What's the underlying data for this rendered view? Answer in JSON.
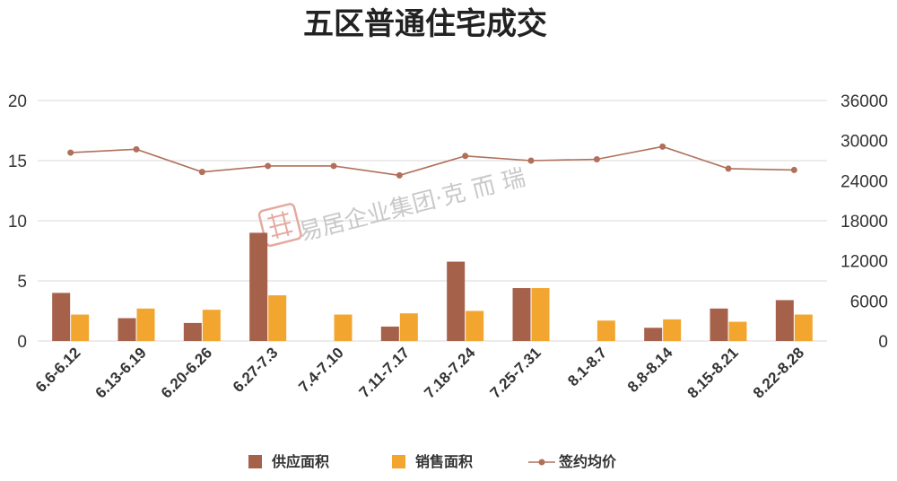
{
  "chart_data": {
    "type": "bar",
    "title": "五区普通住宅成交",
    "categories": [
      "6.6-6.12",
      "6.13-6.19",
      "6.20-6.26",
      "6.27-7.3",
      "7.4-7.10",
      "7.11-7.17",
      "7.18-7.24",
      "7.25-7.31",
      "8.1-8.7",
      "8.8-8.14",
      "8.15-8.21",
      "8.22-8.28"
    ],
    "series": [
      {
        "name": "供应面积",
        "kind": "bar",
        "axis": "left",
        "color": "#a5614a",
        "values": [
          4.0,
          1.9,
          1.5,
          9.0,
          0,
          1.2,
          6.6,
          4.4,
          0,
          1.1,
          2.7,
          3.4
        ]
      },
      {
        "name": "销售面积",
        "kind": "bar",
        "axis": "left",
        "color": "#f2a630",
        "values": [
          2.2,
          2.7,
          2.6,
          3.8,
          2.2,
          2.3,
          2.5,
          4.4,
          1.7,
          1.8,
          1.6,
          2.2
        ]
      },
      {
        "name": "签约均价",
        "kind": "line",
        "axis": "right",
        "color": "#b0705a",
        "values": [
          28200,
          28700,
          25300,
          26200,
          26200,
          24800,
          27700,
          27000,
          27200,
          29100,
          25800,
          25600
        ]
      }
    ],
    "y_left": {
      "ylim": [
        0,
        20
      ],
      "ticks": [
        "0",
        "5",
        "10",
        "15",
        "20"
      ]
    },
    "y_right": {
      "ylim": [
        0,
        36000
      ],
      "ticks": [
        "0",
        "6000",
        "12000",
        "18000",
        "24000",
        "30000",
        "36000"
      ]
    },
    "grid": true,
    "legend_position": "bottom"
  },
  "watermark": {
    "text": "易居企业集团·克 而 瑞",
    "seal_text": "易居"
  }
}
